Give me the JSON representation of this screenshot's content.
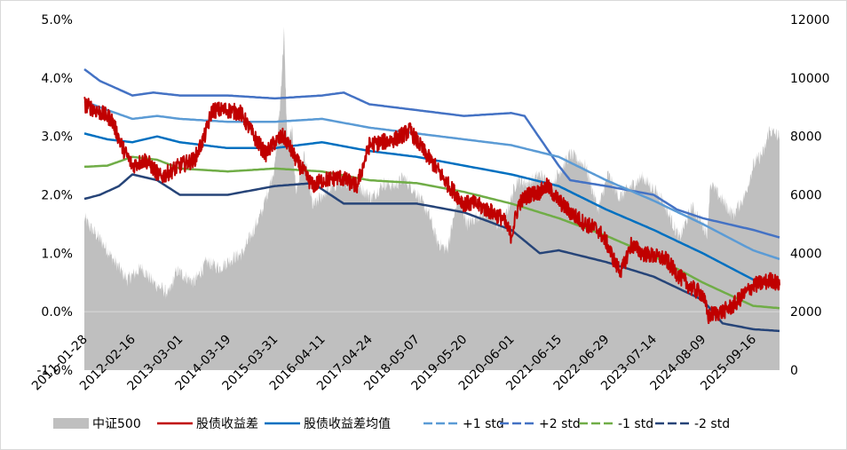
{
  "chart_data": {
    "type": "line",
    "title": "",
    "legend_position": "bottom",
    "grid": false,
    "y_left": {
      "ylim": [
        -0.01,
        0.05
      ],
      "ticks": [
        "-1.0%",
        "0.0%",
        "1.0%",
        "2.0%",
        "3.0%",
        "4.0%",
        "5.0%"
      ]
    },
    "y_right": {
      "ylim": [
        0,
        12000
      ],
      "ticks": [
        "0",
        "2000",
        "4000",
        "6000",
        "8000",
        "10000",
        "12000"
      ]
    },
    "x": {
      "range": [
        "2011-01-28",
        "2026-04-15"
      ],
      "tick_labels": [
        "2011-01-28",
        "2012-02-16",
        "2013-03-01",
        "2014-03-19",
        "2015-03-31",
        "2016-04-11",
        "2017-04-24",
        "2018-05-07",
        "2019-05-20",
        "2020-06-01",
        "2021-06-15",
        "2022-06-29",
        "2023-07-14",
        "2024-08-09",
        "2025-09-16"
      ]
    },
    "colors": {
      "csi500": "#bfbfbf",
      "spread": "#c00000",
      "mean": "#0070c0",
      "plus1": "#5b9bd5",
      "plus2": "#4472c4",
      "minus1": "#70ad47",
      "minus2": "#264478"
    },
    "series": [
      {
        "key": "csi500",
        "name": "中证500",
        "axis": "right",
        "points": [
          [
            "2011-01-28",
            5200
          ],
          [
            "2011-03-15",
            4900
          ],
          [
            "2011-06-15",
            4400
          ],
          [
            "2011-09-30",
            3700
          ],
          [
            "2012-01-05",
            3100
          ],
          [
            "2012-05-01",
            3500
          ],
          [
            "2012-08-01",
            3000
          ],
          [
            "2012-12-03",
            2600
          ],
          [
            "2013-02-05",
            3400
          ],
          [
            "2013-06-25",
            3000
          ],
          [
            "2013-10-01",
            3700
          ],
          [
            "2014-01-15",
            3500
          ],
          [
            "2014-04-15",
            3800
          ],
          [
            "2014-07-15",
            4000
          ],
          [
            "2014-10-01",
            4700
          ],
          [
            "2014-12-15",
            5400
          ],
          [
            "2015-02-15",
            6300
          ],
          [
            "2015-03-31",
            7000
          ],
          [
            "2015-05-10",
            9000
          ],
          [
            "2015-06-12",
            11600
          ],
          [
            "2015-07-08",
            7700
          ],
          [
            "2015-08-15",
            8200
          ],
          [
            "2015-09-15",
            6100
          ],
          [
            "2015-11-20",
            7300
          ],
          [
            "2016-01-28",
            5600
          ],
          [
            "2016-04-15",
            6000
          ],
          [
            "2016-08-15",
            6400
          ],
          [
            "2016-11-25",
            6500
          ],
          [
            "2017-05-15",
            5900
          ],
          [
            "2017-08-15",
            6400
          ],
          [
            "2017-11-15",
            6300
          ],
          [
            "2018-01-20",
            6600
          ],
          [
            "2018-05-15",
            6000
          ],
          [
            "2018-08-15",
            5300
          ],
          [
            "2018-10-18",
            4400
          ],
          [
            "2019-01-03",
            4100
          ],
          [
            "2019-04-08",
            6000
          ],
          [
            "2019-06-15",
            5000
          ],
          [
            "2019-09-15",
            5300
          ],
          [
            "2019-12-31",
            5400
          ],
          [
            "2020-02-03",
            5000
          ],
          [
            "2020-03-23",
            4900
          ],
          [
            "2020-07-15",
            6500
          ],
          [
            "2020-10-15",
            6400
          ],
          [
            "2021-01-15",
            6700
          ],
          [
            "2021-04-15",
            6300
          ],
          [
            "2021-09-15",
            7400
          ],
          [
            "2022-01-15",
            7000
          ],
          [
            "2022-04-26",
            5500
          ],
          [
            "2022-07-15",
            6700
          ],
          [
            "2022-10-15",
            5900
          ],
          [
            "2023-01-15",
            6300
          ],
          [
            "2023-04-15",
            6600
          ],
          [
            "2023-09-15",
            5900
          ],
          [
            "2024-02-05",
            4500
          ],
          [
            "2024-05-15",
            5600
          ],
          [
            "2024-09-15",
            4700
          ],
          [
            "2024-10-08",
            6400
          ],
          [
            "2025-01-15",
            5800
          ],
          [
            "2025-04-08",
            5300
          ],
          [
            "2025-07-15",
            6000
          ],
          [
            "2025-09-16",
            7000
          ],
          [
            "2025-12-15",
            7500
          ],
          [
            "2026-01-20",
            8200
          ],
          [
            "2026-04-15",
            8000
          ]
        ]
      },
      {
        "key": "spread",
        "name": "股债收益差",
        "axis": "left",
        "noisy": true,
        "points": [
          [
            "2011-01-28",
            0.0355
          ],
          [
            "2011-05-01",
            0.0345
          ],
          [
            "2011-09-01",
            0.033
          ],
          [
            "2011-12-01",
            0.028
          ],
          [
            "2012-02-16",
            0.025
          ],
          [
            "2012-06-01",
            0.026
          ],
          [
            "2012-10-01",
            0.023
          ],
          [
            "2013-03-01",
            0.025
          ],
          [
            "2013-06-25",
            0.026
          ],
          [
            "2013-09-15",
            0.03
          ],
          [
            "2013-11-15",
            0.0345
          ],
          [
            "2014-03-19",
            0.0345
          ],
          [
            "2014-07-01",
            0.034
          ],
          [
            "2014-10-15",
            0.03
          ],
          [
            "2015-01-15",
            0.027
          ],
          [
            "2015-03-31",
            0.029
          ],
          [
            "2015-06-01",
            0.03
          ],
          [
            "2015-07-08",
            0.029
          ],
          [
            "2015-09-15",
            0.026
          ],
          [
            "2016-01-28",
            0.0215
          ],
          [
            "2016-04-11",
            0.0225
          ],
          [
            "2016-09-01",
            0.023
          ],
          [
            "2017-01-15",
            0.0215
          ],
          [
            "2017-04-24",
            0.0285
          ],
          [
            "2017-08-01",
            0.029
          ],
          [
            "2017-11-15",
            0.0295
          ],
          [
            "2018-03-15",
            0.031
          ],
          [
            "2018-07-01",
            0.0275
          ],
          [
            "2018-11-01",
            0.024
          ],
          [
            "2019-01-03",
            0.022
          ],
          [
            "2019-05-20",
            0.0185
          ],
          [
            "2019-08-15",
            0.0185
          ],
          [
            "2019-12-31",
            0.017
          ],
          [
            "2020-03-23",
            0.016
          ],
          [
            "2020-06-01",
            0.013
          ],
          [
            "2020-08-01",
            0.0185
          ],
          [
            "2020-10-15",
            0.02
          ],
          [
            "2021-01-15",
            0.0205
          ],
          [
            "2021-03-15",
            0.0215
          ],
          [
            "2021-06-15",
            0.019
          ],
          [
            "2021-09-15",
            0.017
          ],
          [
            "2022-01-15",
            0.015
          ],
          [
            "2022-04-26",
            0.014
          ],
          [
            "2022-06-29",
            0.012
          ],
          [
            "2022-09-15",
            0.008
          ],
          [
            "2022-11-01",
            0.007
          ],
          [
            "2023-01-15",
            0.0115
          ],
          [
            "2023-04-15",
            0.01
          ],
          [
            "2023-07-14",
            0.0095
          ],
          [
            "2023-10-15",
            0.009
          ],
          [
            "2024-02-05",
            0.006
          ],
          [
            "2024-05-15",
            0.004
          ],
          [
            "2024-08-09",
            0.003
          ],
          [
            "2024-09-24",
            -0.001
          ],
          [
            "2024-10-08",
            -0.0005
          ],
          [
            "2025-01-15",
            0.0
          ],
          [
            "2025-04-08",
            0.001
          ],
          [
            "2025-06-15",
            0.0025
          ],
          [
            "2025-09-16",
            0.0045
          ],
          [
            "2025-12-15",
            0.005
          ],
          [
            "2026-02-15",
            0.0055
          ],
          [
            "2026-04-15",
            0.0045
          ]
        ]
      },
      {
        "key": "mean",
        "name": "股债收益差均值",
        "axis": "left",
        "points": [
          [
            "2011-01-28",
            0.0305
          ],
          [
            "2011-08-01",
            0.0295
          ],
          [
            "2012-02-16",
            0.029
          ],
          [
            "2012-09-01",
            0.03
          ],
          [
            "2013-03-01",
            0.029
          ],
          [
            "2014-03-19",
            0.028
          ],
          [
            "2015-03-31",
            0.028
          ],
          [
            "2016-04-11",
            0.029
          ],
          [
            "2017-04-24",
            0.0275
          ],
          [
            "2018-05-07",
            0.0265
          ],
          [
            "2019-05-20",
            0.025
          ],
          [
            "2020-06-01",
            0.0235
          ],
          [
            "2021-06-15",
            0.0215
          ],
          [
            "2022-06-29",
            0.0175
          ],
          [
            "2023-07-14",
            0.014
          ],
          [
            "2024-08-09",
            0.01
          ],
          [
            "2025-09-16",
            0.0055
          ],
          [
            "2026-04-15",
            0.0045
          ]
        ]
      },
      {
        "key": "plus1",
        "name": "+1 std",
        "axis": "left",
        "points": [
          [
            "2011-01-28",
            0.036
          ],
          [
            "2011-08-01",
            0.0345
          ],
          [
            "2012-02-16",
            0.033
          ],
          [
            "2012-09-01",
            0.0335
          ],
          [
            "2013-03-01",
            0.033
          ],
          [
            "2014-03-19",
            0.0325
          ],
          [
            "2015-03-31",
            0.0325
          ],
          [
            "2016-04-11",
            0.033
          ],
          [
            "2017-04-24",
            0.0315
          ],
          [
            "2018-05-07",
            0.0305
          ],
          [
            "2019-05-20",
            0.0295
          ],
          [
            "2020-06-01",
            0.0285
          ],
          [
            "2021-06-15",
            0.0265
          ],
          [
            "2022-06-29",
            0.0225
          ],
          [
            "2023-07-14",
            0.019
          ],
          [
            "2024-08-09",
            0.015
          ],
          [
            "2025-09-16",
            0.0105
          ],
          [
            "2026-04-15",
            0.009
          ]
        ]
      },
      {
        "key": "plus2",
        "name": "+2 std",
        "axis": "left",
        "points": [
          [
            "2011-01-28",
            0.0415
          ],
          [
            "2011-06-01",
            0.0395
          ],
          [
            "2012-02-16",
            0.037
          ],
          [
            "2012-08-01",
            0.0375
          ],
          [
            "2013-03-01",
            0.037
          ],
          [
            "2014-03-19",
            0.037
          ],
          [
            "2015-03-31",
            0.0365
          ],
          [
            "2016-04-11",
            0.037
          ],
          [
            "2016-10-01",
            0.0375
          ],
          [
            "2017-04-24",
            0.0355
          ],
          [
            "2018-05-07",
            0.0345
          ],
          [
            "2019-05-20",
            0.0335
          ],
          [
            "2020-06-01",
            0.034
          ],
          [
            "2020-09-15",
            0.0335
          ],
          [
            "2021-06-15",
            0.025
          ],
          [
            "2021-09-15",
            0.0225
          ],
          [
            "2022-06-29",
            0.0215
          ],
          [
            "2023-07-14",
            0.02
          ],
          [
            "2024-01-15",
            0.0175
          ],
          [
            "2024-08-09",
            0.016
          ],
          [
            "2025-09-16",
            0.014
          ],
          [
            "2026-04-15",
            0.0127
          ]
        ]
      },
      {
        "key": "minus1",
        "name": "-1 std",
        "axis": "left",
        "points": [
          [
            "2011-01-28",
            0.0248
          ],
          [
            "2011-08-01",
            0.025
          ],
          [
            "2012-02-16",
            0.0265
          ],
          [
            "2012-09-01",
            0.026
          ],
          [
            "2013-03-01",
            0.0245
          ],
          [
            "2014-03-19",
            0.024
          ],
          [
            "2015-03-31",
            0.0245
          ],
          [
            "2016-04-11",
            0.024
          ],
          [
            "2017-04-24",
            0.0225
          ],
          [
            "2018-05-07",
            0.022
          ],
          [
            "2019-05-20",
            0.0205
          ],
          [
            "2020-06-01",
            0.0185
          ],
          [
            "2021-06-15",
            0.016
          ],
          [
            "2022-06-29",
            0.013
          ],
          [
            "2023-07-14",
            0.0095
          ],
          [
            "2024-08-09",
            0.005
          ],
          [
            "2025-09-16",
            0.001
          ],
          [
            "2026-04-15",
            0.0006
          ]
        ]
      },
      {
        "key": "minus2",
        "name": "-2 std",
        "axis": "left",
        "points": [
          [
            "2011-01-28",
            0.0193
          ],
          [
            "2011-06-01",
            0.02
          ],
          [
            "2011-11-01",
            0.0215
          ],
          [
            "2012-02-16",
            0.0235
          ],
          [
            "2012-09-01",
            0.0225
          ],
          [
            "2013-03-01",
            0.02
          ],
          [
            "2014-03-19",
            0.02
          ],
          [
            "2015-03-31",
            0.0215
          ],
          [
            "2016-01-28",
            0.022
          ],
          [
            "2016-10-01",
            0.0185
          ],
          [
            "2017-04-24",
            0.0185
          ],
          [
            "2018-05-07",
            0.0185
          ],
          [
            "2019-05-20",
            0.017
          ],
          [
            "2020-06-01",
            0.014
          ],
          [
            "2021-01-15",
            0.01
          ],
          [
            "2021-06-15",
            0.0105
          ],
          [
            "2022-06-29",
            0.0085
          ],
          [
            "2023-07-14",
            0.006
          ],
          [
            "2024-08-09",
            0.002
          ],
          [
            "2025-01-15",
            -0.002
          ],
          [
            "2025-09-16",
            -0.003
          ],
          [
            "2026-04-15",
            -0.0033
          ]
        ]
      }
    ]
  }
}
